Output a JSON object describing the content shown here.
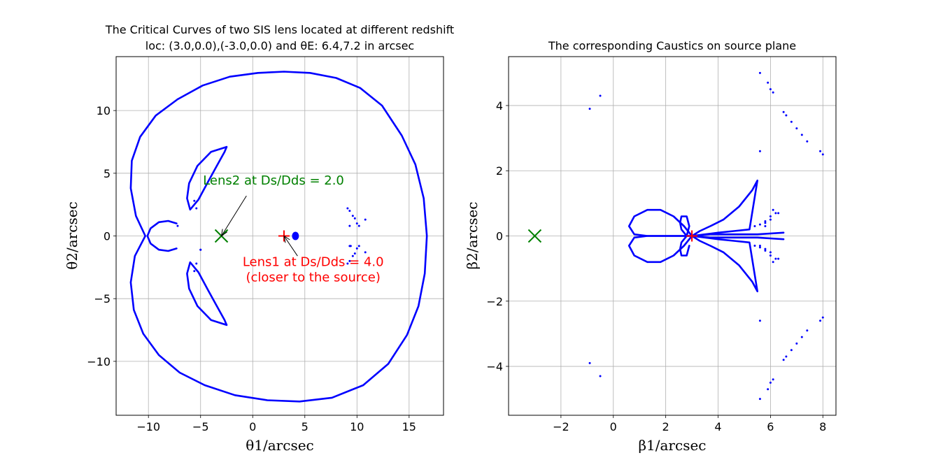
{
  "chart_data": [
    {
      "type": "scatter",
      "title": "The Critical Curves of two SIS lens located at different redshift",
      "subtitle": "loc: (3.0,0.0),(-3.0,0.0) and θE: 6.4,7.2 in arcsec",
      "xlabel": "θ1/arcsec",
      "ylabel": "θ2/arcsec",
      "xlim": [
        -13.1,
        18.3
      ],
      "ylim": [
        -14.3,
        14.3
      ],
      "xticks": [
        -10,
        -5,
        0,
        5,
        10,
        15
      ],
      "yticks": [
        -10,
        -5,
        0,
        5,
        10
      ],
      "grid": true,
      "color": "#0000ff",
      "series": [
        {
          "kind": "curve",
          "x": [
            -10.3,
            -11.2,
            -11.7,
            -11.6,
            -10.8,
            -9.3,
            -7.2,
            -4.8,
            -2.2,
            0.5,
            3.0,
            5.5,
            8.0,
            10.3,
            12.4,
            14.3,
            15.6,
            16.4,
            16.7,
            16.5,
            15.9,
            14.8,
            13.0,
            10.6,
            7.6,
            4.5,
            1.4,
            -1.7,
            -4.6,
            -7.0,
            -9.0,
            -10.5,
            -11.4,
            -11.7,
            -11.3,
            -10.3
          ],
          "y": [
            0.0,
            1.6,
            3.8,
            6.0,
            7.9,
            9.6,
            10.9,
            12.0,
            12.7,
            13.0,
            13.1,
            13.0,
            12.6,
            11.8,
            10.4,
            8.0,
            5.7,
            3.0,
            0.0,
            -3.0,
            -5.6,
            -7.9,
            -10.2,
            -11.9,
            -12.9,
            -13.2,
            -13.1,
            -12.7,
            -11.9,
            -10.9,
            -9.5,
            -7.8,
            -5.9,
            -3.7,
            -1.6,
            0.0
          ]
        },
        {
          "kind": "curve",
          "x": [
            -2.5,
            -4.0,
            -5.3,
            -6.1,
            -6.3,
            -6.0,
            -5.2,
            -4.3,
            -3.5,
            -2.7,
            -2.5
          ],
          "y": [
            7.1,
            6.7,
            5.6,
            4.2,
            3.0,
            2.1,
            2.9,
            4.3,
            5.5,
            6.7,
            7.1
          ]
        },
        {
          "kind": "curve",
          "x": [
            -2.5,
            -4.0,
            -5.3,
            -6.1,
            -6.3,
            -6.0,
            -5.2,
            -4.3,
            -3.5,
            -2.7,
            -2.5
          ],
          "y": [
            -7.1,
            -6.7,
            -5.6,
            -4.2,
            -3.0,
            -2.1,
            -2.9,
            -4.3,
            -5.5,
            -6.7,
            -7.1
          ]
        },
        {
          "kind": "curve",
          "x": [
            -7.3,
            -8.1,
            -9.0,
            -9.8,
            -10.1,
            -9.8,
            -9.0,
            -8.1,
            -7.3
          ],
          "y": [
            1.0,
            1.2,
            1.1,
            0.6,
            0.0,
            -0.6,
            -1.1,
            -1.2,
            -1.0
          ]
        },
        {
          "kind": "points",
          "x": [
            -7.2,
            -5.6,
            -5.4,
            -5.0,
            -5.6,
            -5.4,
            -5.0,
            9.1,
            9.3,
            9.6,
            9.8,
            10.0,
            10.2,
            10.8,
            9.3,
            9.1,
            9.3,
            9.6,
            9.8,
            10.0,
            10.2,
            10.8,
            9.3,
            9.4
          ],
          "y": [
            0.8,
            2.8,
            2.2,
            -1.1,
            -2.8,
            -2.2,
            -1.1,
            2.2,
            2.0,
            1.6,
            1.4,
            1.0,
            0.8,
            1.3,
            -0.8,
            -2.2,
            -2.0,
            -1.6,
            -1.4,
            -1.0,
            -0.8,
            -1.3,
            0.8,
            -0.8
          ]
        },
        {
          "kind": "blob",
          "x": [
            4.1
          ],
          "y": [
            0.0
          ]
        }
      ],
      "markers": [
        {
          "symbol": "x",
          "x": -3.0,
          "y": 0.0,
          "color": "#008000"
        },
        {
          "symbol": "+",
          "x": 3.0,
          "y": 0.0,
          "color": "#ff0000"
        }
      ],
      "annotations": [
        {
          "line1": "Lens2 at Ds/Dds = 2.0",
          "line2": "",
          "color": "#008000",
          "text_x": 2.0,
          "text_y": 4.1,
          "arrow_from": [
            -0.6,
            3.2
          ],
          "arrow_to": [
            -3.0,
            0.0
          ]
        },
        {
          "line1": "Lens1 at Ds/Dds = 4.0",
          "line2": "(closer to the source)",
          "color": "#ff0000",
          "text_x": 5.8,
          "text_y": -2.4,
          "arrow_from": [
            4.3,
            -1.6
          ],
          "arrow_to": [
            3.0,
            0.0
          ]
        }
      ]
    },
    {
      "type": "scatter",
      "title": "The corresponding Caustics on source plane",
      "xlabel": "β1/arcsec",
      "ylabel": "β2/arcsec",
      "xlim": [
        -4.0,
        8.5
      ],
      "ylim": [
        -5.5,
        5.5
      ],
      "xticks": [
        -2,
        0,
        2,
        4,
        6,
        8
      ],
      "yticks": [
        -4,
        -2,
        0,
        2,
        4
      ],
      "grid": true,
      "color": "#0000ff",
      "series": [
        {
          "kind": "curve",
          "x": [
            3.0,
            2.7,
            2.3,
            1.8,
            1.3,
            0.8,
            0.6,
            0.8,
            1.3,
            1.9,
            2.5,
            3.0
          ],
          "y": [
            0.0,
            0.3,
            0.6,
            0.8,
            0.8,
            0.6,
            0.3,
            0.05,
            0.0,
            0.0,
            0.0,
            0.0
          ]
        },
        {
          "kind": "curve",
          "x": [
            3.0,
            2.7,
            2.3,
            1.8,
            1.3,
            0.8,
            0.6,
            0.8,
            1.3,
            1.9,
            2.5,
            3.0
          ],
          "y": [
            0.0,
            -0.3,
            -0.6,
            -0.8,
            -0.8,
            -0.6,
            -0.3,
            -0.05,
            0.0,
            0.0,
            0.0,
            0.0
          ]
        },
        {
          "kind": "curve",
          "x": [
            2.8,
            2.6,
            2.55,
            2.6,
            2.8,
            2.9,
            2.8,
            2.6,
            2.55,
            2.6,
            2.8,
            2.9
          ],
          "y": [
            0.0,
            0.2,
            0.4,
            0.6,
            0.6,
            0.3,
            0.0,
            -0.2,
            -0.4,
            -0.6,
            -0.6,
            -0.3
          ]
        },
        {
          "kind": "curve",
          "x": [
            3.0,
            3.3,
            3.7,
            4.2,
            4.8,
            5.3,
            5.5,
            5.2,
            4.6,
            4.0,
            3.5,
            3.0
          ],
          "y": [
            0.0,
            0.15,
            0.3,
            0.5,
            0.9,
            1.4,
            1.7,
            0.2,
            0.15,
            0.1,
            0.05,
            0.0
          ]
        },
        {
          "kind": "curve",
          "x": [
            3.0,
            3.3,
            3.7,
            4.2,
            4.8,
            5.3,
            5.5,
            5.2,
            4.6,
            4.0,
            3.5,
            3.0
          ],
          "y": [
            0.0,
            -0.15,
            -0.3,
            -0.5,
            -0.9,
            -1.4,
            -1.7,
            -0.2,
            -0.15,
            -0.1,
            -0.05,
            0.0
          ]
        },
        {
          "kind": "curve",
          "x": [
            3.0,
            3.7,
            4.6,
            5.5,
            6.5
          ],
          "y": [
            0.0,
            0.05,
            0.05,
            0.05,
            0.1
          ]
        },
        {
          "kind": "curve",
          "x": [
            3.0,
            3.7,
            4.6,
            5.5,
            6.5
          ],
          "y": [
            0.0,
            -0.05,
            -0.05,
            -0.05,
            -0.1
          ]
        },
        {
          "kind": "points",
          "x": [
            -0.9,
            -0.5,
            5.6,
            5.9,
            6.0,
            6.1,
            6.5,
            6.6,
            6.8,
            7.0,
            7.2,
            7.4,
            7.9,
            8.0,
            5.6,
            5.4,
            5.6,
            5.8,
            6.0,
            6.2,
            5.8,
            6.0,
            6.3,
            6.1,
            5.8,
            5.6,
            5.4,
            5.6,
            5.8,
            6.0,
            6.2,
            5.8,
            6.0,
            6.3,
            6.1,
            -0.9,
            -0.5,
            5.6,
            5.9,
            6.0,
            6.1,
            6.5,
            6.6,
            6.8,
            7.0,
            7.2,
            7.4,
            7.9,
            8.0,
            5.6
          ],
          "y": [
            3.9,
            4.3,
            5.0,
            4.7,
            4.5,
            4.4,
            3.8,
            3.7,
            3.5,
            3.3,
            3.1,
            2.9,
            2.6,
            2.5,
            2.6,
            0.3,
            0.35,
            0.4,
            0.6,
            0.7,
            0.45,
            0.5,
            0.7,
            0.8,
            0.3,
            -0.3,
            -0.3,
            -0.35,
            -0.4,
            -0.6,
            -0.7,
            -0.45,
            -0.5,
            -0.7,
            -0.8,
            -3.9,
            -4.3,
            -5.0,
            -4.7,
            -4.5,
            -4.4,
            -3.8,
            -3.7,
            -3.5,
            -3.3,
            -3.1,
            -2.9,
            -2.6,
            -2.5,
            -2.6
          ]
        }
      ],
      "markers": [
        {
          "symbol": "x",
          "x": -3.0,
          "y": 0.0,
          "color": "#008000"
        },
        {
          "symbol": "+",
          "x": 3.0,
          "y": 0.0,
          "color": "#ff0000"
        }
      ],
      "annotations": []
    }
  ]
}
